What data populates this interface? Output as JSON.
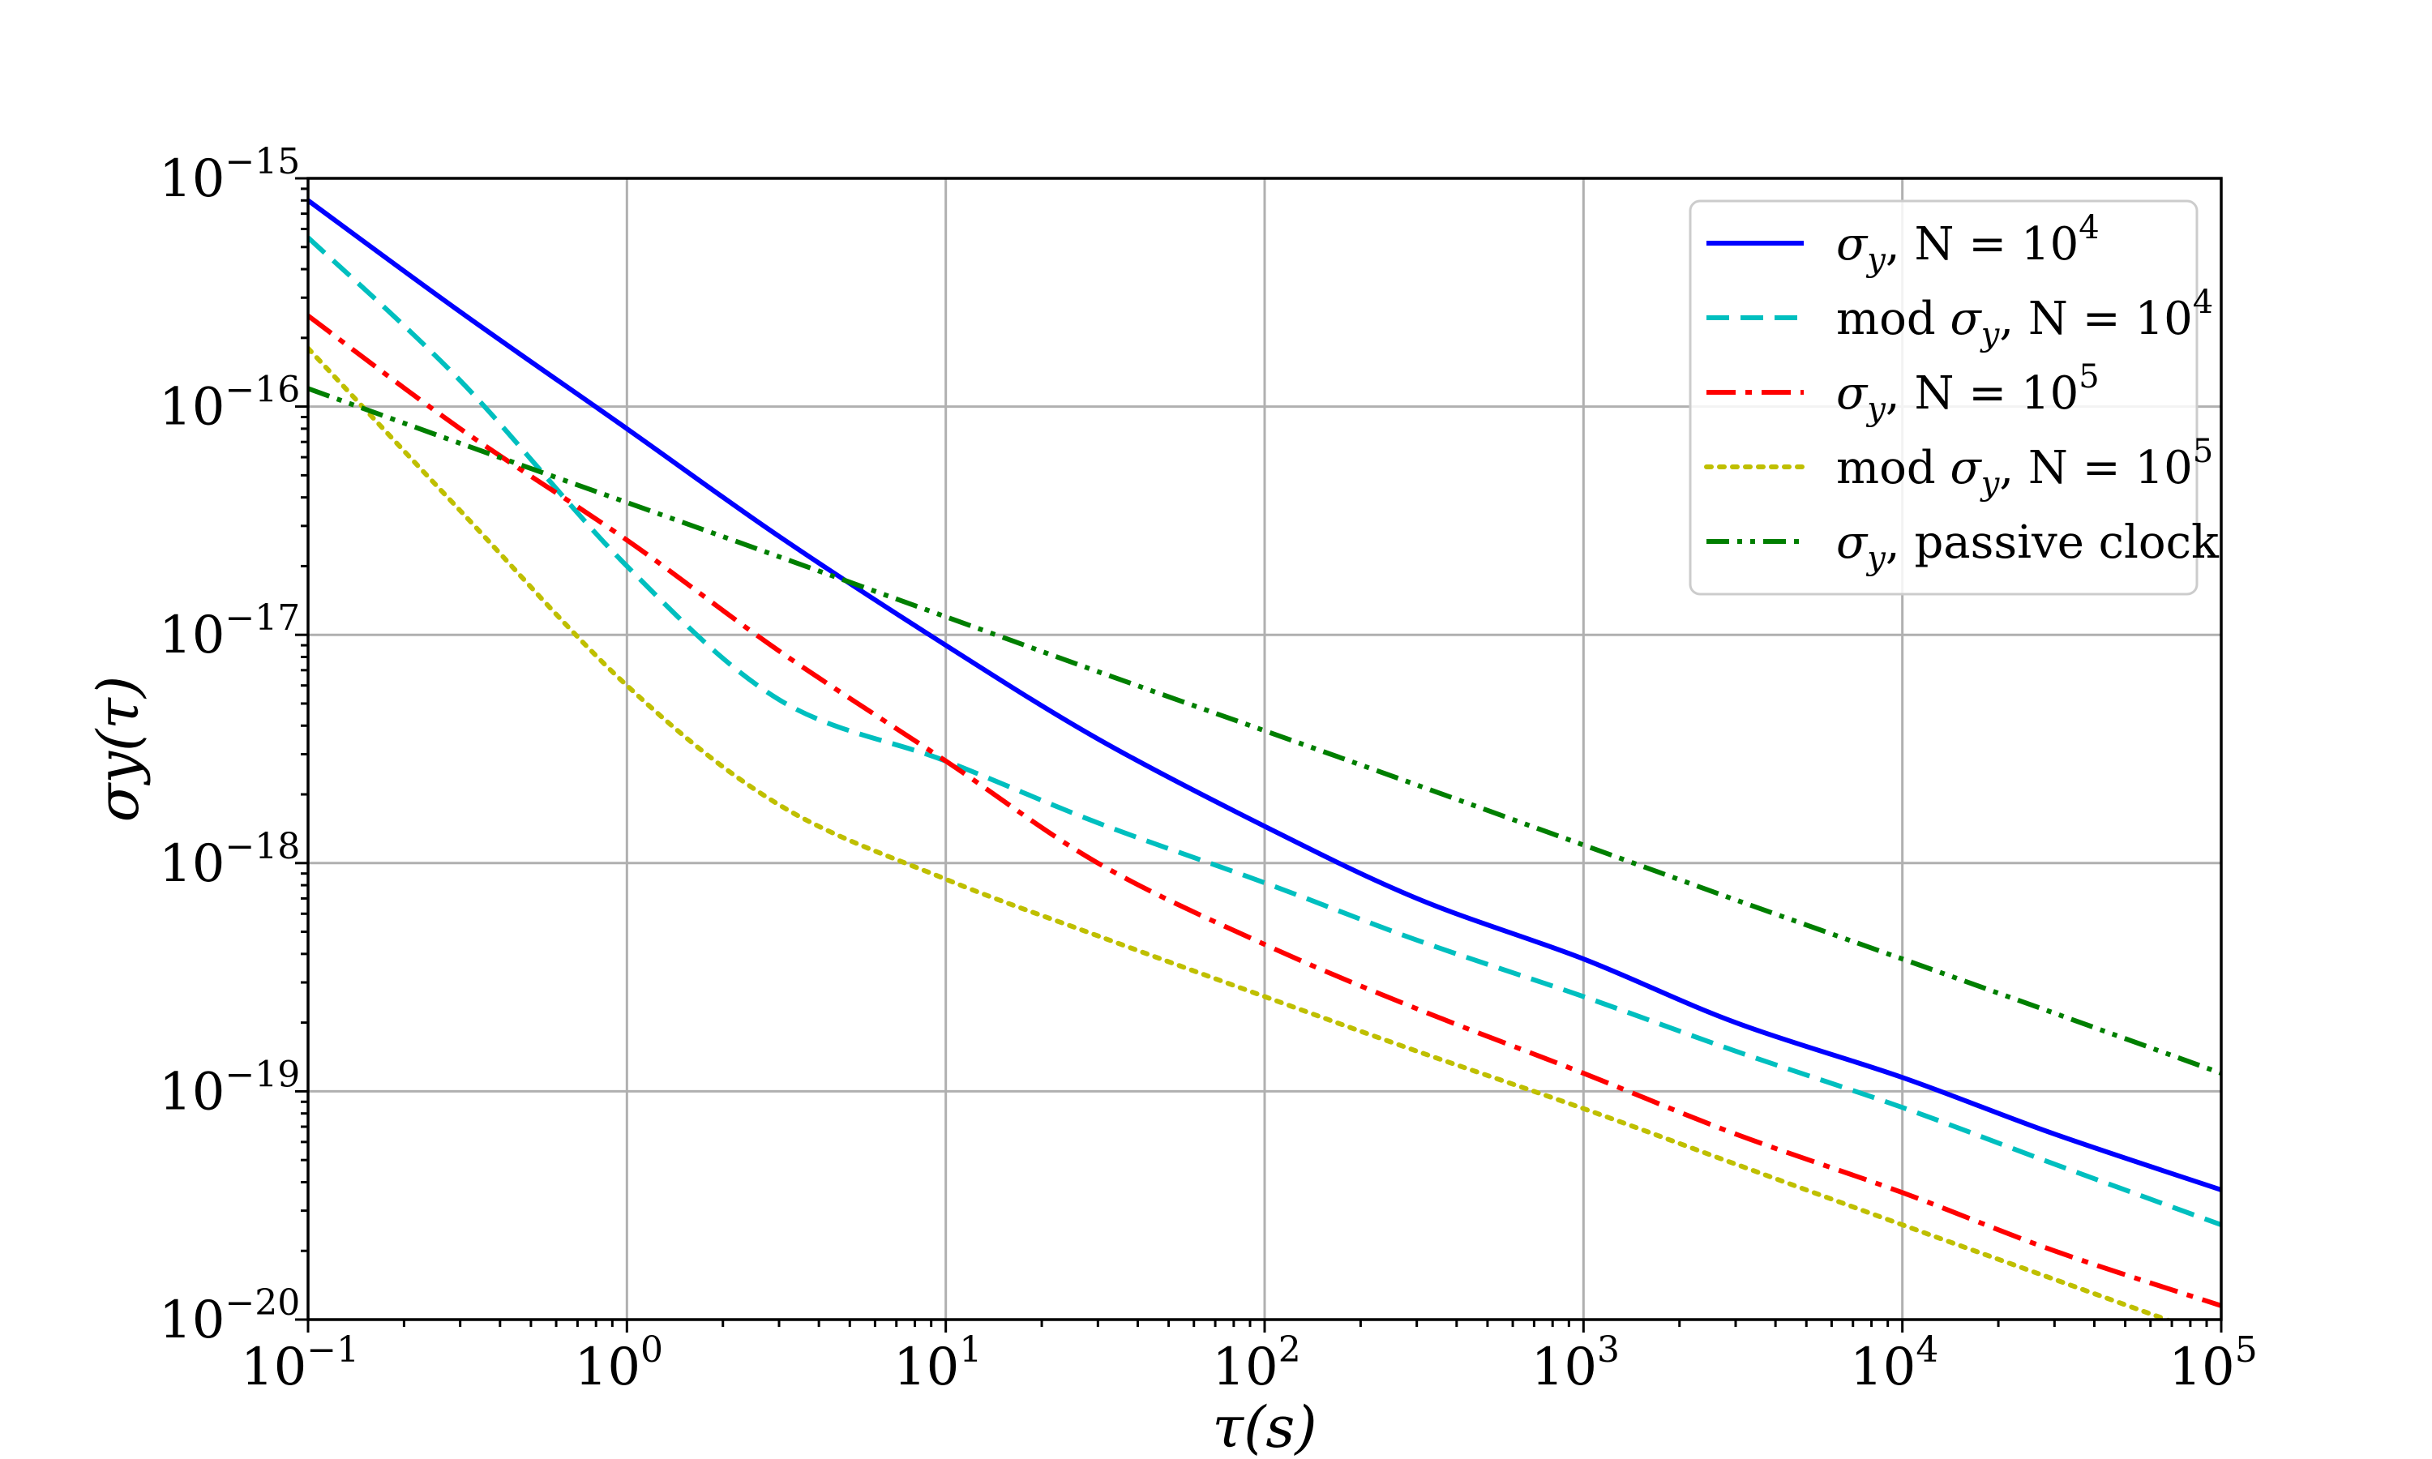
{
  "chart_data": {
    "type": "line",
    "xscale": "log",
    "yscale": "log",
    "xlim": [
      0.1,
      100000
    ],
    "ylim": [
      1e-20,
      1e-15
    ],
    "xlabel": "τ(s)",
    "ylabel": "σy(τ)",
    "grid": true,
    "legend_position": "top-right",
    "x_ticks": [
      {
        "value": 0.1,
        "base": "10",
        "exp": "−1"
      },
      {
        "value": 1,
        "base": "10",
        "exp": "0"
      },
      {
        "value": 10,
        "base": "10",
        "exp": "1"
      },
      {
        "value": 100,
        "base": "10",
        "exp": "2"
      },
      {
        "value": 1000,
        "base": "10",
        "exp": "3"
      },
      {
        "value": 10000,
        "base": "10",
        "exp": "4"
      },
      {
        "value": 100000,
        "base": "10",
        "exp": "5"
      }
    ],
    "y_ticks": [
      {
        "value": 1e-15,
        "base": "10",
        "exp": "−15"
      },
      {
        "value": 1e-16,
        "base": "10",
        "exp": "−16"
      },
      {
        "value": 1e-17,
        "base": "10",
        "exp": "−17"
      },
      {
        "value": 1e-18,
        "base": "10",
        "exp": "−18"
      },
      {
        "value": 1e-19,
        "base": "10",
        "exp": "−19"
      },
      {
        "value": 1e-20,
        "base": "10",
        "exp": "−20"
      }
    ],
    "x": [
      0.1,
      0.3,
      1,
      3,
      10,
      30,
      100,
      300,
      1000,
      3000,
      10000,
      30000,
      100000
    ],
    "series": [
      {
        "name": "σy, N = 10^4",
        "color": "#0000ff",
        "style": "solid",
        "values": [
          8e-16,
          2.6e-16,
          8e-17,
          2.7e-17,
          9e-18,
          3.5e-18,
          1.45e-18,
          7e-19,
          3.8e-19,
          2e-19,
          1.15e-19,
          6.5e-20,
          3.7e-20
        ]
      },
      {
        "name": "mod σy, N = 10^4",
        "color": "#00bfbf",
        "style": "dashed",
        "values": [
          5.5e-16,
          1.3e-16,
          2e-17,
          5.2e-18,
          2.8e-18,
          1.5e-18,
          8.2e-19,
          4.6e-19,
          2.6e-19,
          1.5e-19,
          8.5e-20,
          4.8e-20,
          2.6e-20
        ]
      },
      {
        "name": "σy, N = 10^5",
        "color": "#ff0000",
        "style": "dashdot",
        "values": [
          2.5e-16,
          8e-17,
          2.6e-17,
          8.5e-18,
          2.8e-18,
          1e-18,
          4.4e-19,
          2.3e-19,
          1.2e-19,
          6.5e-20,
          3.6e-20,
          2e-20,
          1.15e-20
        ]
      },
      {
        "name": "mod σy, N = 10^5",
        "color": "#bfbf00",
        "style": "dotted",
        "values": [
          1.8e-16,
          3.5e-17,
          6e-18,
          1.8e-18,
          8.5e-19,
          4.8e-19,
          2.6e-19,
          1.5e-19,
          8.4e-20,
          4.8e-20,
          2.6e-20,
          1.5e-20,
          8.2e-21
        ]
      },
      {
        "name": "σy, passive clock",
        "color": "#007f00",
        "style": "dashdotdot",
        "values": [
          1.2e-16,
          6.9e-17,
          3.8e-17,
          2.2e-17,
          1.2e-17,
          6.9e-18,
          3.8e-18,
          2.2e-18,
          1.2e-18,
          6.9e-19,
          3.8e-19,
          2.2e-19,
          1.2e-19
        ]
      }
    ]
  },
  "legend": {
    "items": [
      {
        "prefix": "",
        "symbol": "σ",
        "sub": "y",
        "rest": ", N = 10",
        "sup": "4"
      },
      {
        "prefix": "mod ",
        "symbol": "σ",
        "sub": "y",
        "rest": ", N = 10",
        "sup": "4"
      },
      {
        "prefix": "",
        "symbol": "σ",
        "sub": "y",
        "rest": ", N = 10",
        "sup": "5"
      },
      {
        "prefix": "mod ",
        "symbol": "σ",
        "sub": "y",
        "rest": ", N = 10",
        "sup": "5"
      },
      {
        "prefix": "",
        "symbol": "σ",
        "sub": "y",
        "rest": ", passive clock",
        "sup": ""
      }
    ]
  }
}
